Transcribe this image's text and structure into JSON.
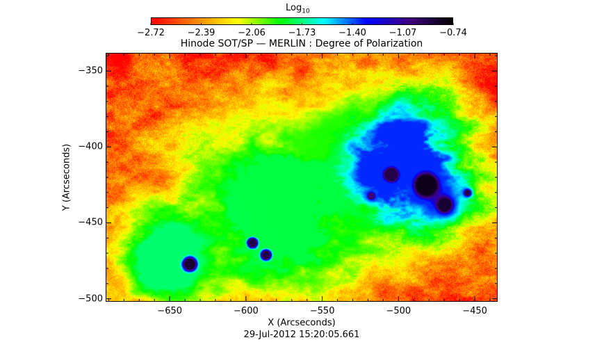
{
  "chart_data": {
    "type": "heatmap",
    "title": "Hinode SOT/SP — MERLIN : Degree of Polarization",
    "xlabel": "X (Arcseconds)",
    "ylabel": "Y (Arcseconds)",
    "timestamp": "29-Jul-2012 15:20:05.661",
    "xlim": [
      -692,
      -435
    ],
    "ylim": [
      -502,
      -338
    ],
    "xticks": [
      -650,
      -600,
      -550,
      -500,
      -450
    ],
    "yticks": [
      -350,
      -400,
      -450,
      -500
    ],
    "xtick_labels": [
      "−650",
      "−600",
      "−550",
      "−500",
      "−450"
    ],
    "ytick_labels": [
      "−350",
      "−400",
      "−450",
      "−500"
    ],
    "colorbar": {
      "label_base": "Log",
      "label_sub": "10",
      "range": [
        -2.72,
        -0.74
      ],
      "ticks": [
        -2.72,
        -2.39,
        -2.06,
        -1.73,
        -1.4,
        -1.07,
        -0.74
      ],
      "tick_labels": [
        "−2.72",
        "−2.39",
        "−2.06",
        "−1.73",
        "−1.40",
        "−1.07",
        "−0.74"
      ],
      "colormap": [
        "#ff0000",
        "#ff8000",
        "#ffff00",
        "#00ff00",
        "#00ffff",
        "#0000ff",
        "#400080",
        "#000000"
      ]
    },
    "features": [
      {
        "kind": "sunspot",
        "x": -482,
        "y": -425,
        "r": 16,
        "value": -0.8
      },
      {
        "kind": "sunspot",
        "x": -505,
        "y": -418,
        "r": 10,
        "value": -0.9
      },
      {
        "kind": "sunspot",
        "x": -470,
        "y": -438,
        "r": 10,
        "value": -0.85
      },
      {
        "kind": "sunspot",
        "x": -637,
        "y": -477,
        "r": 8,
        "value": -0.85
      },
      {
        "kind": "sunspot",
        "x": -596,
        "y": -463,
        "r": 6,
        "value": -0.9
      },
      {
        "kind": "sunspot",
        "x": -587,
        "y": -471,
        "r": 6,
        "value": -0.9
      },
      {
        "kind": "pore",
        "x": -455,
        "y": -430,
        "r": 4,
        "value": -0.9
      },
      {
        "kind": "pore",
        "x": -518,
        "y": -432,
        "r": 5,
        "value": -1.0
      },
      {
        "kind": "plage",
        "x": -495,
        "y": -415,
        "r": 42,
        "value": -1.35
      },
      {
        "kind": "plage",
        "x": -575,
        "y": -440,
        "r": 55,
        "value": -1.8
      },
      {
        "kind": "plage",
        "x": -650,
        "y": -470,
        "r": 32,
        "value": -1.75
      },
      {
        "kind": "plage",
        "x": -540,
        "y": -405,
        "r": 30,
        "value": -1.9
      }
    ],
    "background_value": -2.6
  }
}
